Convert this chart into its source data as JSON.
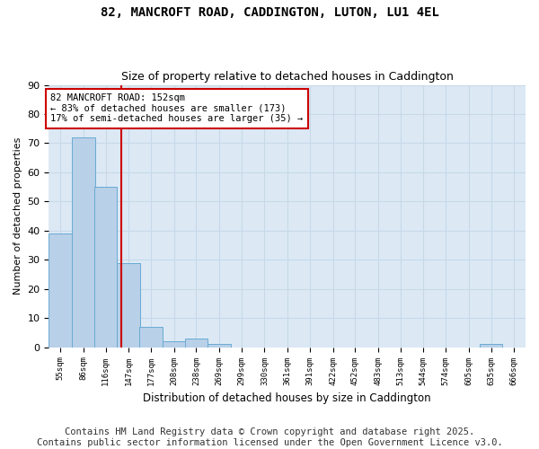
{
  "title1": "82, MANCROFT ROAD, CADDINGTON, LUTON, LU1 4EL",
  "title2": "Size of property relative to detached houses in Caddington",
  "xlabel": "Distribution of detached houses by size in Caddington",
  "ylabel": "Number of detached properties",
  "bin_labels": [
    "55sqm",
    "86sqm",
    "116sqm",
    "147sqm",
    "177sqm",
    "208sqm",
    "238sqm",
    "269sqm",
    "299sqm",
    "330sqm",
    "361sqm",
    "391sqm",
    "422sqm",
    "452sqm",
    "483sqm",
    "513sqm",
    "544sqm",
    "574sqm",
    "605sqm",
    "635sqm",
    "666sqm"
  ],
  "bin_edges": [
    55,
    86,
    116,
    147,
    177,
    208,
    238,
    269,
    299,
    330,
    361,
    391,
    422,
    452,
    483,
    513,
    544,
    574,
    605,
    635,
    666
  ],
  "bar_heights": [
    39,
    72,
    55,
    29,
    7,
    2,
    3,
    1,
    0,
    0,
    0,
    0,
    0,
    0,
    0,
    0,
    0,
    0,
    0,
    1,
    0
  ],
  "bar_color": "#b8d0e8",
  "bar_edge_color": "#6aaad4",
  "property_size": 152,
  "vline_color": "#cc0000",
  "annotation_text": "82 MANCROFT ROAD: 152sqm\n← 83% of detached houses are smaller (173)\n17% of semi-detached houses are larger (35) →",
  "annotation_box_color": "#ffffff",
  "annotation_box_edge_color": "#cc0000",
  "ylim": [
    0,
    90
  ],
  "yticks": [
    0,
    10,
    20,
    30,
    40,
    50,
    60,
    70,
    80,
    90
  ],
  "plot_bg_color": "#dce9f5",
  "fig_bg_color": "#ffffff",
  "grid_color": "#c8d8e8",
  "footer_text": "Contains HM Land Registry data © Crown copyright and database right 2025.\nContains public sector information licensed under the Open Government Licence v3.0.",
  "footer_fontsize": 7.5
}
